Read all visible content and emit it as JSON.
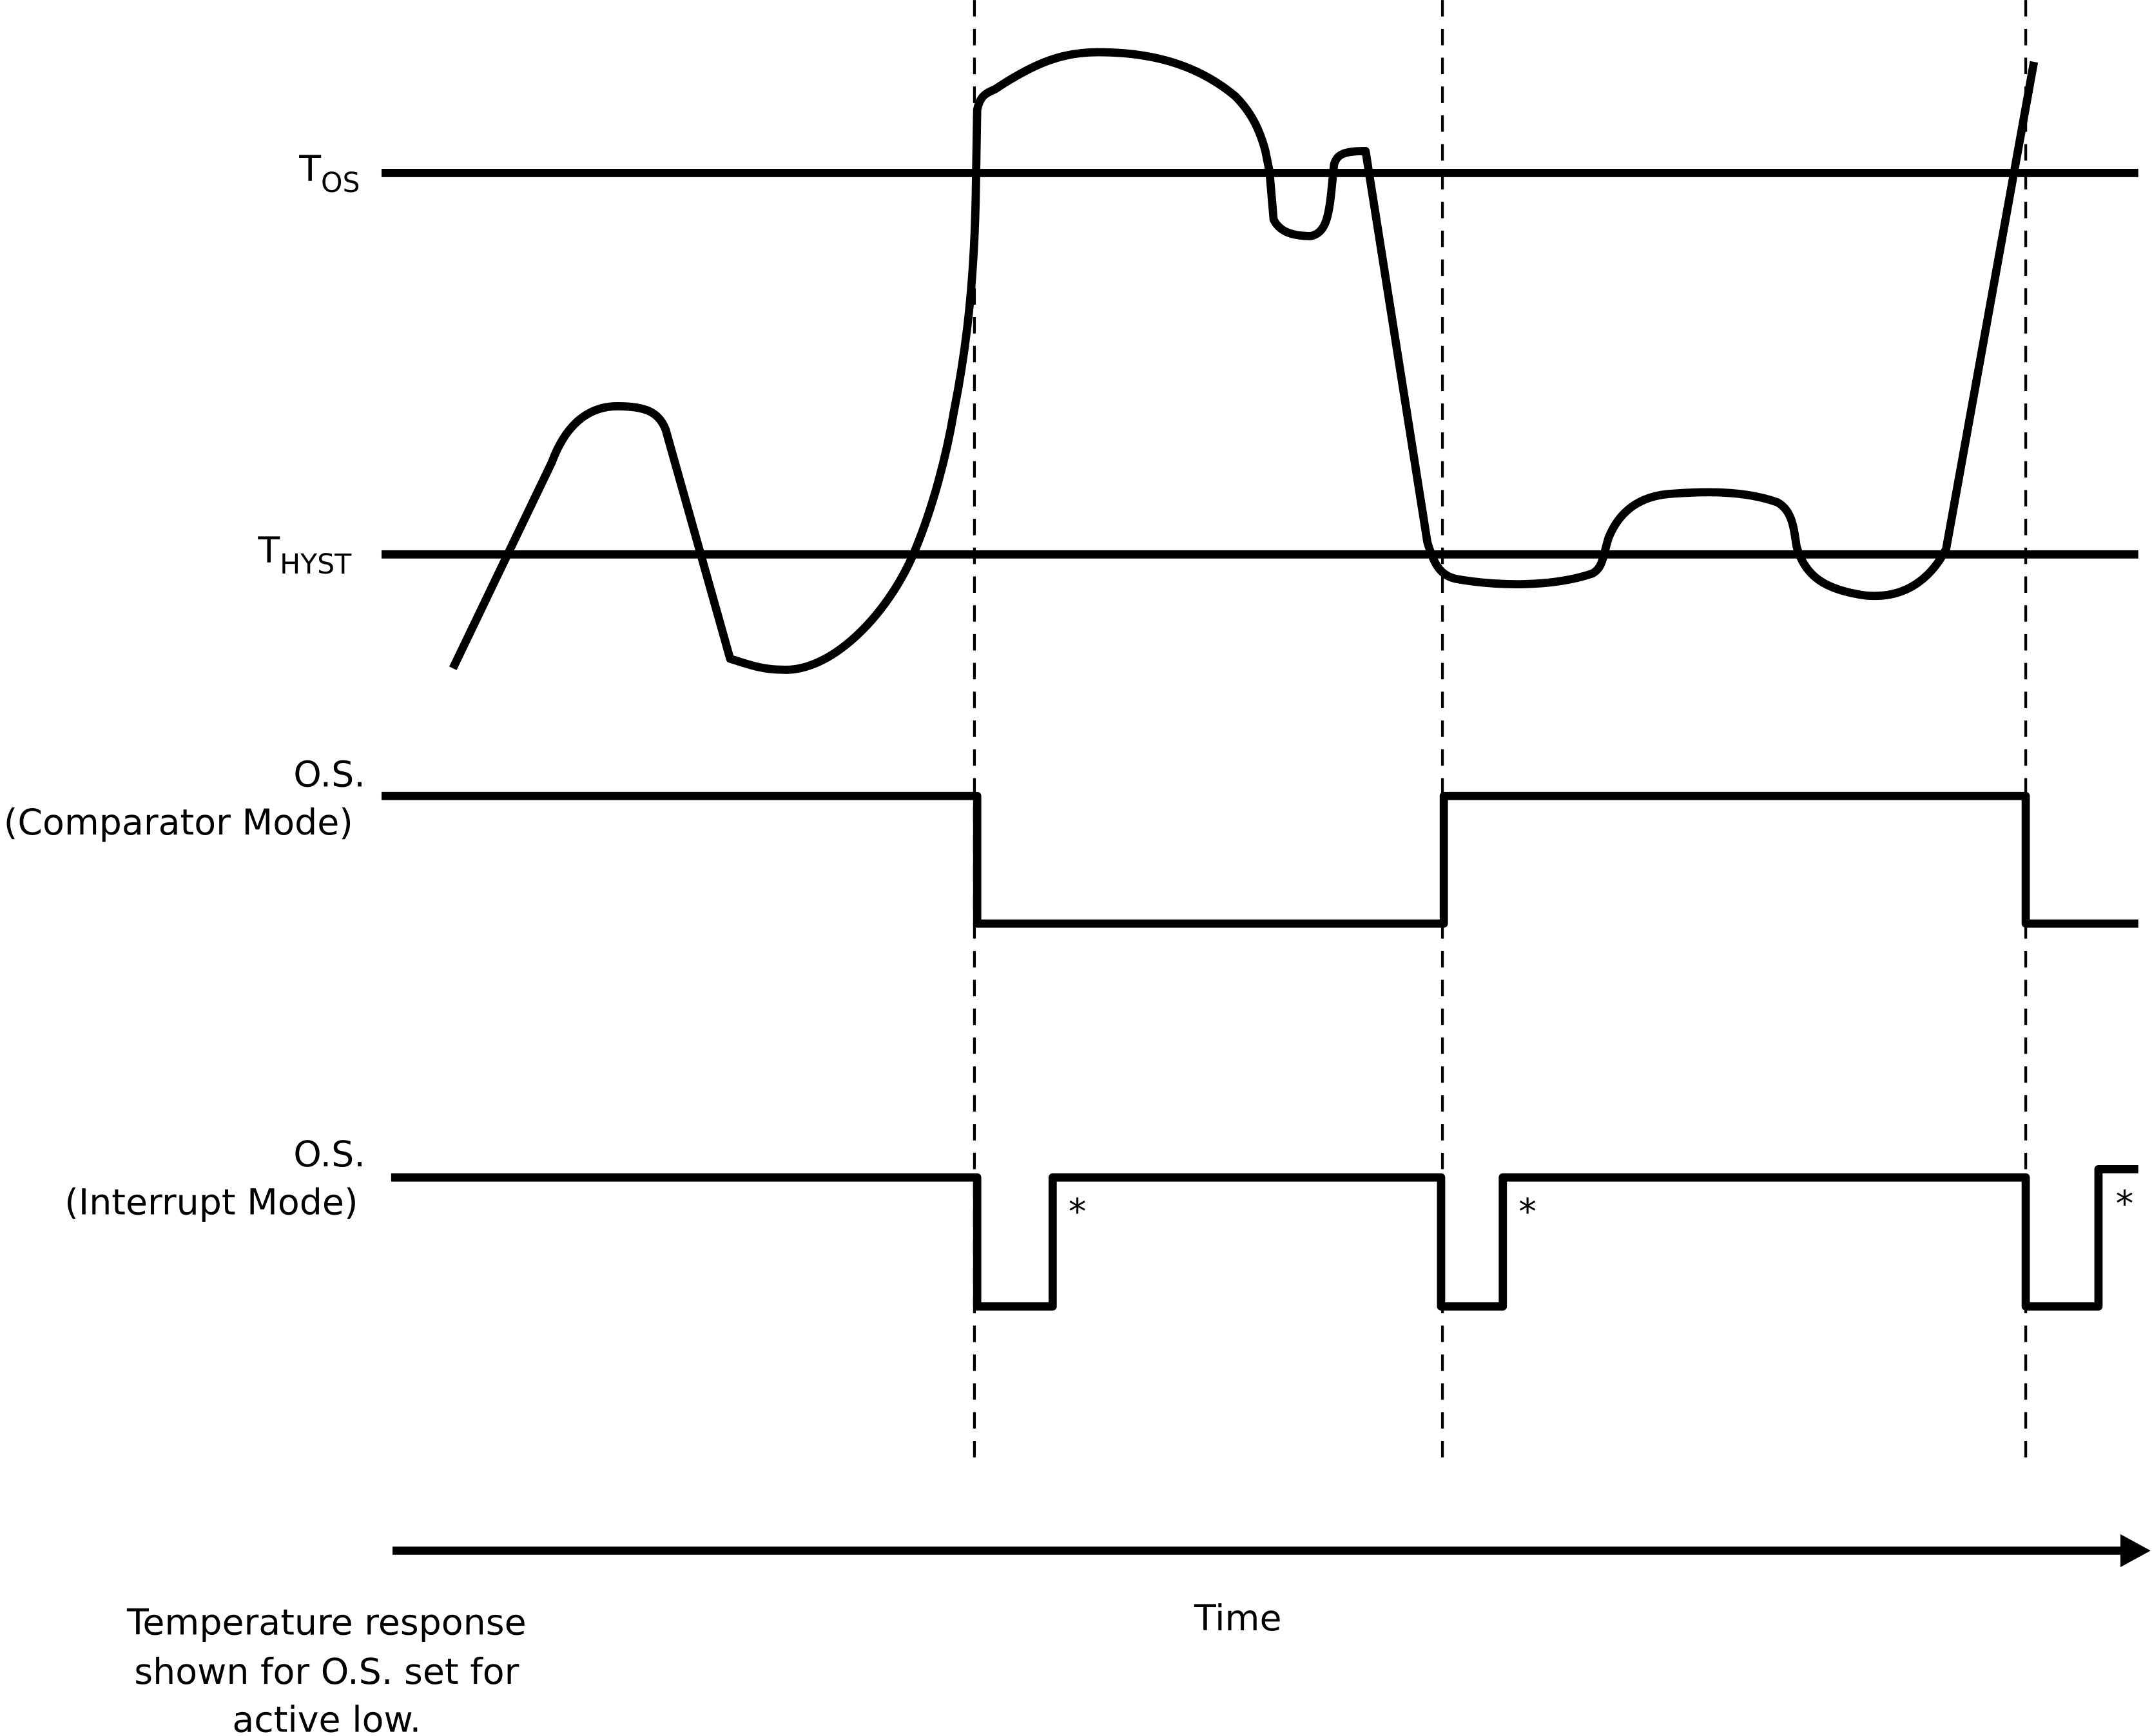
{
  "labels": {
    "t_os_main": "T",
    "t_os_sub": "OS",
    "t_hyst_main": "T",
    "t_hyst_sub": "HYST",
    "comparator_line1": "O.S.",
    "comparator_line2": "(Comparator Mode)",
    "interrupt_line1": "O.S.",
    "interrupt_line2": "(Interrupt Mode)",
    "asterisk": "*",
    "time_axis": "Time",
    "caption_line1": "Temperature response",
    "caption_line2": "shown for O.S. set for",
    "caption_line3": "active low."
  },
  "colors": {
    "stroke": "#000000",
    "background": "#ffffff"
  }
}
